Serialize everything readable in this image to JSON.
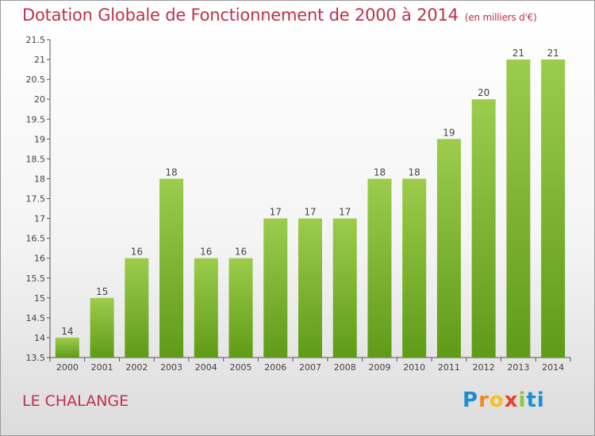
{
  "header": {
    "title": "Dotation Globale de Fonctionnement de 2000 à 2014",
    "subtitle": "(en milliers d'€)"
  },
  "footer": {
    "commune": "LE CHALANGE",
    "logo_letters": [
      "P",
      "r",
      "o",
      "x",
      "i",
      "ti"
    ]
  },
  "colors": {
    "bar_light": "#9ccc4c",
    "bar_dark": "#5f9b17",
    "title": "#c0304f"
  },
  "chart_data": {
    "type": "bar",
    "title": "Dotation Globale de Fonctionnement de 2000 à 2014",
    "subtitle": "(en milliers d'€)",
    "xlabel": "",
    "ylabel": "",
    "categories": [
      "2000",
      "2001",
      "2002",
      "2003",
      "2004",
      "2005",
      "2006",
      "2007",
      "2008",
      "2009",
      "2010",
      "2011",
      "2012",
      "2013",
      "2014"
    ],
    "values": [
      14,
      15,
      16,
      18,
      16,
      16,
      17,
      17,
      17,
      18,
      18,
      19,
      20,
      21,
      21
    ],
    "value_labels": [
      "14",
      "15",
      "16",
      "18",
      "16",
      "16",
      "17",
      "17",
      "17",
      "18",
      "18",
      "19",
      "20",
      "21",
      "21"
    ],
    "ylim": [
      13.5,
      21.5
    ],
    "yticks": [
      13.5,
      14,
      14.5,
      15,
      15.5,
      16,
      16.5,
      17,
      17.5,
      18,
      18.5,
      19,
      19.5,
      20,
      20.5,
      21,
      21.5
    ],
    "ytick_labels": [
      "13.5",
      "14",
      "14.5",
      "15",
      "15.5",
      "16",
      "16.5",
      "17",
      "17.5",
      "18",
      "18.5",
      "19",
      "19.5",
      "20",
      "20.5",
      "21",
      "21.5"
    ],
    "grid": false,
    "legend": "none"
  }
}
